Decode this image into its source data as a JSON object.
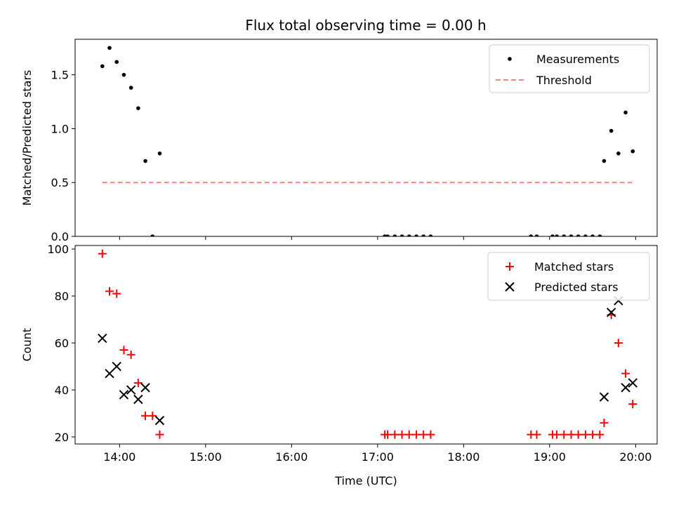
{
  "title": "Flux total observing time = 0.00 h",
  "colors": {
    "measurement": "#000000",
    "threshold": "#ff8080",
    "matched": "#ff0000",
    "predicted": "#000000"
  },
  "chart_data": [
    {
      "type": "scatter",
      "ylabel": "Matched/Predicted stars",
      "ylim": [
        0,
        1.83
      ],
      "xlim": [
        "13:29",
        "20:15"
      ],
      "y_ticks": [
        "0.0",
        "0.5",
        "1.0",
        "1.5"
      ],
      "legend": {
        "placement": "top-right",
        "entries": [
          "Measurements",
          "Threshold"
        ]
      },
      "series": [
        {
          "name": "Measurements",
          "points": [
            {
              "x": "13:48",
              "y": 1.58
            },
            {
              "x": "13:53",
              "y": 1.75
            },
            {
              "x": "13:58",
              "y": 1.62
            },
            {
              "x": "14:03",
              "y": 1.5
            },
            {
              "x": "14:08",
              "y": 1.38
            },
            {
              "x": "14:13",
              "y": 1.19
            },
            {
              "x": "14:18",
              "y": 0.7
            },
            {
              "x": "14:23",
              "y": 0.0
            },
            {
              "x": "14:28",
              "y": 0.77
            },
            {
              "x": "17:05",
              "y": 0.0
            },
            {
              "x": "17:07",
              "y": 0.0
            },
            {
              "x": "17:12",
              "y": 0.0
            },
            {
              "x": "17:17",
              "y": 0.0
            },
            {
              "x": "17:22",
              "y": 0.0
            },
            {
              "x": "17:27",
              "y": 0.0
            },
            {
              "x": "17:32",
              "y": 0.0
            },
            {
              "x": "17:37",
              "y": 0.0
            },
            {
              "x": "18:47",
              "y": 0.0
            },
            {
              "x": "18:51",
              "y": 0.0
            },
            {
              "x": "19:02",
              "y": 0.0
            },
            {
              "x": "19:05",
              "y": 0.0
            },
            {
              "x": "19:10",
              "y": 0.0
            },
            {
              "x": "19:15",
              "y": 0.0
            },
            {
              "x": "19:20",
              "y": 0.0
            },
            {
              "x": "19:25",
              "y": 0.0
            },
            {
              "x": "19:30",
              "y": 0.0
            },
            {
              "x": "19:35",
              "y": 0.0
            },
            {
              "x": "19:38",
              "y": 0.7
            },
            {
              "x": "19:43",
              "y": 0.98
            },
            {
              "x": "19:48",
              "y": 0.77
            },
            {
              "x": "19:53",
              "y": 1.15
            },
            {
              "x": "19:58",
              "y": 0.79
            }
          ]
        },
        {
          "name": "Threshold",
          "x_range": [
            "13:48",
            "19:58"
          ],
          "y": 0.5
        }
      ]
    },
    {
      "type": "scatter",
      "xlabel": "Time (UTC)",
      "ylabel": "Count",
      "ylim": [
        17,
        101.5
      ],
      "xlim": [
        "13:29",
        "20:15"
      ],
      "x_ticks": [
        "14:00",
        "15:00",
        "16:00",
        "17:00",
        "18:00",
        "19:00",
        "20:00"
      ],
      "y_ticks": [
        "20",
        "40",
        "60",
        "80",
        "100"
      ],
      "legend": {
        "placement": "top-right",
        "entries": [
          "Matched stars",
          "Predicted stars"
        ]
      },
      "series": [
        {
          "name": "Matched stars",
          "points": [
            {
              "x": "13:48",
              "y": 98
            },
            {
              "x": "13:53",
              "y": 82
            },
            {
              "x": "13:58",
              "y": 81
            },
            {
              "x": "14:03",
              "y": 57
            },
            {
              "x": "14:08",
              "y": 55
            },
            {
              "x": "14:13",
              "y": 43
            },
            {
              "x": "14:18",
              "y": 29
            },
            {
              "x": "14:23",
              "y": 29
            },
            {
              "x": "14:28",
              "y": 21
            },
            {
              "x": "17:05",
              "y": 21
            },
            {
              "x": "17:07",
              "y": 21
            },
            {
              "x": "17:12",
              "y": 21
            },
            {
              "x": "17:17",
              "y": 21
            },
            {
              "x": "17:22",
              "y": 21
            },
            {
              "x": "17:27",
              "y": 21
            },
            {
              "x": "17:32",
              "y": 21
            },
            {
              "x": "17:37",
              "y": 21
            },
            {
              "x": "18:47",
              "y": 21
            },
            {
              "x": "18:51",
              "y": 21
            },
            {
              "x": "19:02",
              "y": 21
            },
            {
              "x": "19:05",
              "y": 21
            },
            {
              "x": "19:10",
              "y": 21
            },
            {
              "x": "19:15",
              "y": 21
            },
            {
              "x": "19:20",
              "y": 21
            },
            {
              "x": "19:25",
              "y": 21
            },
            {
              "x": "19:30",
              "y": 21
            },
            {
              "x": "19:35",
              "y": 21
            },
            {
              "x": "19:38",
              "y": 26
            },
            {
              "x": "19:43",
              "y": 72
            },
            {
              "x": "19:48",
              "y": 60
            },
            {
              "x": "19:53",
              "y": 47
            },
            {
              "x": "19:58",
              "y": 34
            }
          ]
        },
        {
          "name": "Predicted stars",
          "points": [
            {
              "x": "13:48",
              "y": 62
            },
            {
              "x": "13:53",
              "y": 47
            },
            {
              "x": "13:58",
              "y": 50
            },
            {
              "x": "14:03",
              "y": 38
            },
            {
              "x": "14:08",
              "y": 40
            },
            {
              "x": "14:13",
              "y": 36
            },
            {
              "x": "14:18",
              "y": 41
            },
            {
              "x": "14:28",
              "y": 27
            },
            {
              "x": "19:38",
              "y": 37
            },
            {
              "x": "19:43",
              "y": 73
            },
            {
              "x": "19:48",
              "y": 78
            },
            {
              "x": "19:53",
              "y": 41
            },
            {
              "x": "19:58",
              "y": 43
            }
          ]
        }
      ]
    }
  ]
}
